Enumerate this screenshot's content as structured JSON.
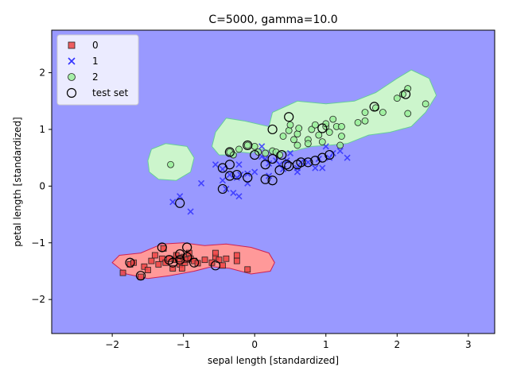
{
  "chart_data": {
    "type": "scatter",
    "title": "C=5000, gamma=10.0",
    "xlabel": "sepal length [standardized]",
    "ylabel": "petal length [standardized]",
    "xlim": [
      -2.85,
      3.37
    ],
    "ylim": [
      -2.6,
      2.75
    ],
    "xticks": [
      -2,
      -1,
      0,
      1,
      2,
      3
    ],
    "yticks": [
      -2,
      -1,
      0,
      1,
      2
    ],
    "grid": false,
    "legend_position": "top-left",
    "background_color": "#9999ff",
    "regions": [
      {
        "class": "0",
        "color": "#ff9999",
        "edge_color": "#cc2255",
        "polygon": [
          [
            -1.8,
            -1.55
          ],
          [
            -1.9,
            -1.45
          ],
          [
            -2.0,
            -1.35
          ],
          [
            -1.9,
            -1.22
          ],
          [
            -1.6,
            -1.18
          ],
          [
            -1.3,
            -1.02
          ],
          [
            -1.0,
            -1.0
          ],
          [
            -0.7,
            -1.05
          ],
          [
            -0.4,
            -1.02
          ],
          [
            -0.05,
            -1.08
          ],
          [
            0.2,
            -1.18
          ],
          [
            0.28,
            -1.35
          ],
          [
            0.22,
            -1.5
          ],
          [
            -0.05,
            -1.55
          ],
          [
            -0.35,
            -1.45
          ],
          [
            -0.6,
            -1.42
          ],
          [
            -0.85,
            -1.5
          ],
          [
            -1.2,
            -1.58
          ],
          [
            -1.5,
            -1.63
          ]
        ]
      },
      {
        "class": "2",
        "color": "#ccf5cc",
        "edge_color": "#66cc99",
        "polygon": [
          [
            -1.5,
            0.45
          ],
          [
            -1.45,
            0.65
          ],
          [
            -1.25,
            0.75
          ],
          [
            -0.95,
            0.7
          ],
          [
            -0.85,
            0.5
          ],
          [
            -0.9,
            0.25
          ],
          [
            -1.1,
            0.1
          ],
          [
            -1.35,
            0.12
          ],
          [
            -1.48,
            0.25
          ]
        ]
      },
      {
        "class": "2",
        "color": "#ccf5cc",
        "edge_color": "#66cc99",
        "polygon": [
          [
            -0.6,
            0.7
          ],
          [
            -0.55,
            0.95
          ],
          [
            -0.4,
            1.2
          ],
          [
            -0.15,
            1.15
          ],
          [
            0.2,
            1.05
          ],
          [
            0.25,
            1.3
          ],
          [
            0.6,
            1.5
          ],
          [
            1.0,
            1.45
          ],
          [
            1.4,
            1.5
          ],
          [
            1.7,
            1.65
          ],
          [
            2.0,
            1.9
          ],
          [
            2.2,
            2.05
          ],
          [
            2.45,
            1.9
          ],
          [
            2.55,
            1.6
          ],
          [
            2.4,
            1.3
          ],
          [
            2.2,
            1.05
          ],
          [
            1.9,
            0.95
          ],
          [
            1.6,
            0.9
          ],
          [
            1.3,
            0.75
          ],
          [
            1.05,
            0.72
          ],
          [
            0.8,
            0.7
          ],
          [
            0.55,
            0.62
          ],
          [
            0.35,
            0.6
          ],
          [
            0.1,
            0.65
          ],
          [
            -0.05,
            0.58
          ],
          [
            -0.2,
            0.6
          ],
          [
            -0.35,
            0.55
          ],
          [
            -0.5,
            0.55
          ]
        ]
      }
    ],
    "series": [
      {
        "name": "0",
        "marker": "square",
        "color": "#ee4444",
        "points": [
          [
            -1.85,
            -1.53
          ],
          [
            -1.75,
            -1.38
          ],
          [
            -1.7,
            -1.35
          ],
          [
            -1.55,
            -1.42
          ],
          [
            -1.5,
            -1.48
          ],
          [
            -1.45,
            -1.32
          ],
          [
            -1.4,
            -1.22
          ],
          [
            -1.35,
            -1.38
          ],
          [
            -1.3,
            -1.28
          ],
          [
            -1.28,
            -1.1
          ],
          [
            -1.25,
            -1.35
          ],
          [
            -1.2,
            -1.28
          ],
          [
            -1.15,
            -1.45
          ],
          [
            -1.12,
            -1.3
          ],
          [
            -1.1,
            -1.22
          ],
          [
            -1.05,
            -1.3
          ],
          [
            -1.05,
            -1.38
          ],
          [
            -1.02,
            -1.45
          ],
          [
            -1.0,
            -1.25
          ],
          [
            -0.98,
            -1.35
          ],
          [
            -0.95,
            -1.3
          ],
          [
            -0.92,
            -1.18
          ],
          [
            -0.9,
            -1.28
          ],
          [
            -0.85,
            -1.32
          ],
          [
            -0.8,
            -1.36
          ],
          [
            -0.7,
            -1.3
          ],
          [
            -0.6,
            -1.35
          ],
          [
            -0.55,
            -1.25
          ],
          [
            -0.55,
            -1.18
          ],
          [
            -0.5,
            -1.3
          ],
          [
            -0.45,
            -1.4
          ],
          [
            -0.4,
            -1.28
          ],
          [
            -0.25,
            -1.32
          ],
          [
            -0.25,
            -1.22
          ],
          [
            -0.1,
            -1.47
          ],
          [
            -1.6,
            -1.6
          ]
        ]
      },
      {
        "name": "1",
        "marker": "x",
        "color": "#3333ff",
        "points": [
          [
            -1.15,
            -0.28
          ],
          [
            -1.05,
            -0.18
          ],
          [
            -0.9,
            -0.45
          ],
          [
            -0.75,
            0.05
          ],
          [
            -0.55,
            0.38
          ],
          [
            -0.45,
            0.1
          ],
          [
            -0.45,
            0.3
          ],
          [
            -0.4,
            -0.05
          ],
          [
            -0.35,
            0.2
          ],
          [
            -0.3,
            -0.12
          ],
          [
            -0.25,
            0.15
          ],
          [
            -0.22,
            -0.18
          ],
          [
            -0.22,
            0.38
          ],
          [
            -0.2,
            0.2
          ],
          [
            -0.1,
            0.05
          ],
          [
            -0.1,
            0.22
          ],
          [
            0.0,
            0.25
          ],
          [
            0.1,
            0.7
          ],
          [
            0.1,
            0.52
          ],
          [
            0.15,
            0.48
          ],
          [
            0.2,
            0.4
          ],
          [
            0.2,
            0.18
          ],
          [
            0.3,
            0.45
          ],
          [
            0.35,
            0.38
          ],
          [
            0.4,
            0.3
          ],
          [
            0.45,
            0.45
          ],
          [
            0.5,
            0.58
          ],
          [
            0.6,
            0.32
          ],
          [
            0.6,
            0.25
          ],
          [
            0.65,
            0.42
          ],
          [
            0.75,
            0.42
          ],
          [
            0.85,
            0.32
          ],
          [
            0.9,
            0.48
          ],
          [
            0.95,
            0.32
          ],
          [
            1.0,
            0.7
          ],
          [
            1.05,
            0.5
          ],
          [
            1.1,
            0.58
          ],
          [
            1.2,
            0.62
          ],
          [
            1.3,
            0.5
          ]
        ]
      },
      {
        "name": "2",
        "marker": "circle",
        "color": "#99ee99",
        "points": [
          [
            -1.18,
            0.38
          ],
          [
            -0.35,
            0.6
          ],
          [
            -0.22,
            0.65
          ],
          [
            -0.1,
            0.72
          ],
          [
            0.0,
            0.7
          ],
          [
            0.05,
            0.6
          ],
          [
            0.15,
            0.58
          ],
          [
            0.25,
            0.62
          ],
          [
            0.3,
            0.6
          ],
          [
            0.35,
            0.55
          ],
          [
            0.4,
            0.88
          ],
          [
            0.48,
            0.98
          ],
          [
            0.5,
            1.08
          ],
          [
            0.55,
            0.82
          ],
          [
            0.6,
            0.72
          ],
          [
            0.6,
            0.92
          ],
          [
            0.62,
            1.02
          ],
          [
            0.75,
            0.82
          ],
          [
            0.75,
            0.75
          ],
          [
            0.8,
            1.0
          ],
          [
            0.85,
            1.08
          ],
          [
            0.9,
            0.9
          ],
          [
            0.95,
            0.78
          ],
          [
            1.0,
            1.05
          ],
          [
            1.0,
            1.1
          ],
          [
            1.05,
            0.95
          ],
          [
            1.1,
            1.18
          ],
          [
            1.15,
            1.05
          ],
          [
            1.2,
            0.72
          ],
          [
            1.22,
            0.88
          ],
          [
            1.22,
            1.05
          ],
          [
            1.45,
            1.12
          ],
          [
            1.55,
            1.15
          ],
          [
            1.55,
            1.3
          ],
          [
            1.7,
            1.38
          ],
          [
            1.8,
            1.3
          ],
          [
            2.0,
            1.55
          ],
          [
            2.08,
            1.62
          ],
          [
            2.15,
            1.72
          ],
          [
            2.15,
            1.28
          ],
          [
            2.4,
            1.45
          ],
          [
            -0.3,
            0.55
          ]
        ]
      },
      {
        "name": "test set",
        "marker": "ring",
        "color": "#000000",
        "points": [
          [
            -1.75,
            -1.35
          ],
          [
            -1.6,
            -1.58
          ],
          [
            -1.3,
            -1.08
          ],
          [
            -1.2,
            -1.3
          ],
          [
            -1.15,
            -1.35
          ],
          [
            -1.05,
            -1.3
          ],
          [
            -1.05,
            -1.2
          ],
          [
            -0.95,
            -1.25
          ],
          [
            -0.95,
            -1.08
          ],
          [
            -0.85,
            -1.35
          ],
          [
            -0.55,
            -1.4
          ],
          [
            -1.05,
            -0.3
          ],
          [
            -0.45,
            -0.05
          ],
          [
            -0.45,
            0.32
          ],
          [
            -0.35,
            0.38
          ],
          [
            -0.35,
            0.6
          ],
          [
            -0.35,
            0.18
          ],
          [
            -0.25,
            0.2
          ],
          [
            -0.1,
            0.15
          ],
          [
            -0.1,
            0.72
          ],
          [
            0.0,
            0.55
          ],
          [
            0.15,
            0.38
          ],
          [
            0.15,
            0.12
          ],
          [
            0.25,
            0.1
          ],
          [
            0.25,
            0.48
          ],
          [
            0.25,
            1.0
          ],
          [
            0.35,
            0.28
          ],
          [
            0.38,
            0.55
          ],
          [
            0.45,
            0.38
          ],
          [
            0.48,
            1.22
          ],
          [
            0.48,
            0.35
          ],
          [
            0.6,
            0.38
          ],
          [
            0.65,
            0.42
          ],
          [
            0.75,
            0.42
          ],
          [
            0.85,
            0.45
          ],
          [
            0.95,
            0.5
          ],
          [
            0.95,
            1.02
          ],
          [
            1.05,
            0.55
          ],
          [
            1.68,
            1.4
          ],
          [
            2.12,
            1.62
          ]
        ]
      }
    ]
  }
}
